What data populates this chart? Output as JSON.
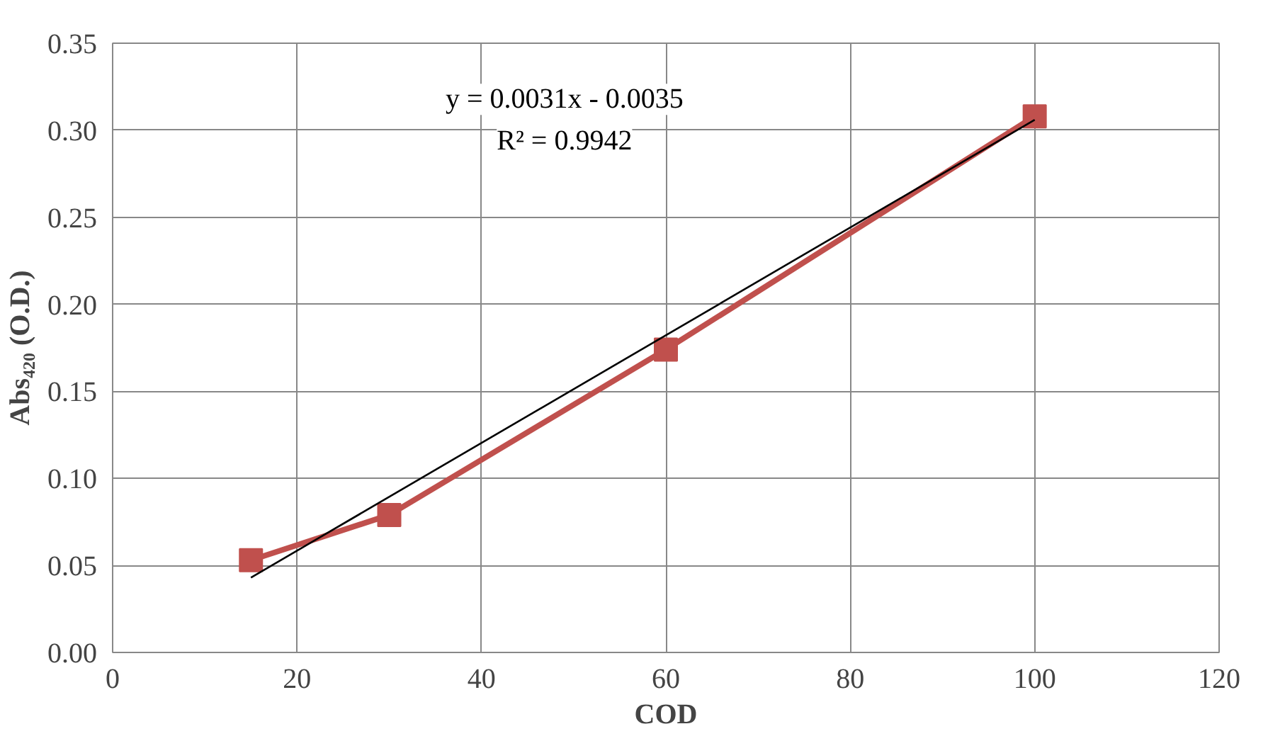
{
  "chart_data": {
    "type": "line",
    "xlabel": "COD",
    "ylabel": "Abs₄₂₀ (O.D.)",
    "x": [
      15,
      30,
      60,
      100
    ],
    "series": [
      {
        "color": "#c0504d",
        "values": [
          0.053,
          0.079,
          0.174,
          0.308
        ],
        "marker": "square"
      },
      {
        "type": "line",
        "color": "#000000",
        "x": [
          15,
          100
        ],
        "values": [
          0.043,
          0.306
        ],
        "marker": "none"
      }
    ],
    "annotations": [
      "y = 0.0031x - 0.0035",
      "R² = 0.9942"
    ],
    "xlim": [
      0,
      120
    ],
    "xticks": [
      0,
      20,
      40,
      60,
      80,
      100,
      120
    ],
    "ylim": [
      0,
      0.35
    ],
    "yticks": [
      {
        "value": 0,
        "label": "0.00"
      },
      {
        "value": 0.05,
        "label": "0.05"
      },
      {
        "value": 0.1,
        "label": "0.10"
      },
      {
        "value": 0.15,
        "label": "0.15"
      },
      {
        "value": 0.2,
        "label": "0.20"
      },
      {
        "value": 0.25,
        "label": "0.25"
      },
      {
        "value": 0.3,
        "label": "0.30"
      },
      {
        "value": 0.35,
        "label": "0.35"
      }
    ],
    "grid": true,
    "line_style": "solid"
  }
}
